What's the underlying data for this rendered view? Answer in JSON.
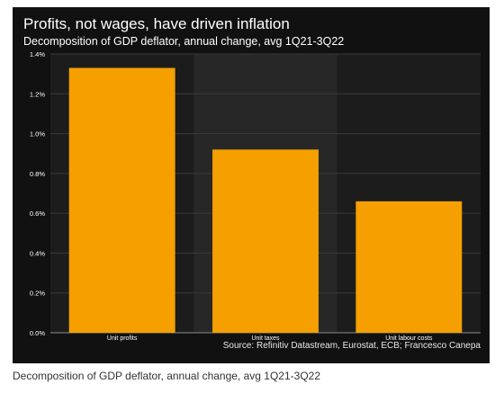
{
  "chart_data": {
    "type": "bar",
    "title": "Profits, not wages, have driven inflation",
    "subtitle": "Decomposition of GDP deflator, annual change, avg 1Q21-3Q22",
    "categories": [
      "Unit profits",
      "Unit taxes",
      "Unit labour costs"
    ],
    "values": [
      1.33,
      0.92,
      0.66
    ],
    "ylim": [
      0,
      1.4
    ],
    "yticks": [
      0,
      0.2,
      0.4,
      0.6,
      0.8,
      1.0,
      1.2,
      1.4
    ],
    "ytick_labels": [
      "0.0%",
      "0.2%",
      "0.4%",
      "0.6%",
      "0.8%",
      "1.0%",
      "1.2%",
      "1.4%"
    ],
    "grid": "horizontal",
    "legend": "none",
    "bar_color": "#f5a000",
    "source": "Source: Refinitiv Datastream, Eurostat, ECB; Francesco Canepa"
  },
  "caption": "Decomposition of GDP deflator, annual change, avg 1Q21-3Q22"
}
